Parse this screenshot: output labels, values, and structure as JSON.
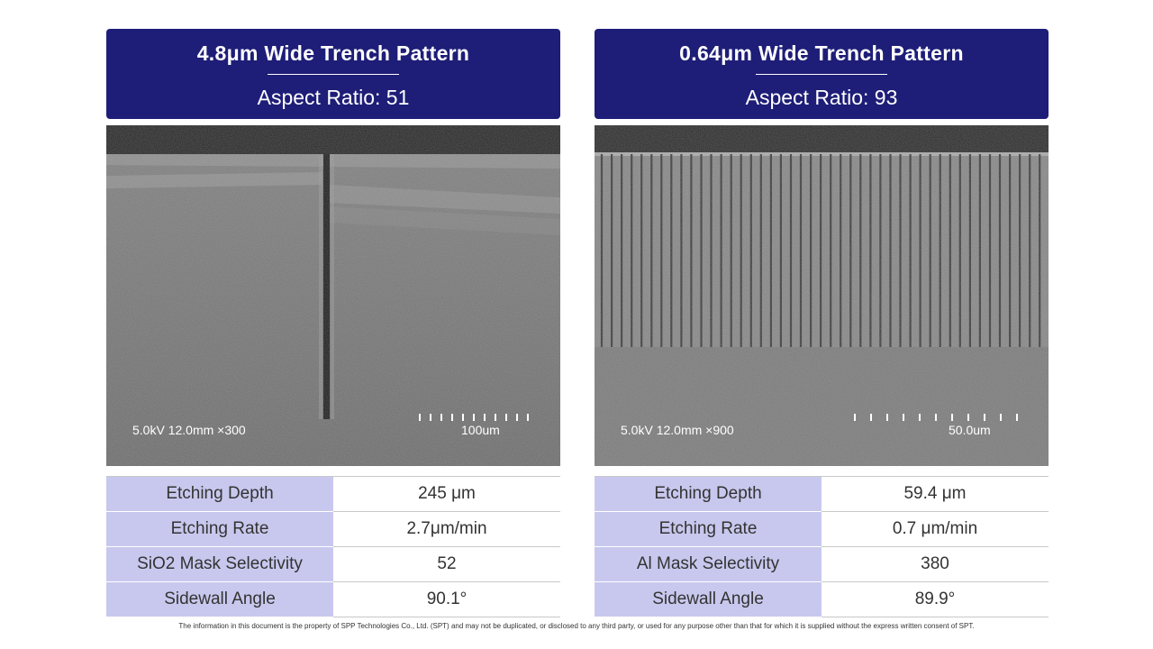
{
  "panels": [
    {
      "title": "4.8μm Wide Trench Pattern",
      "subtitle": "Aspect Ratio: 51",
      "sem": {
        "caption": "5.0kV 12.0mm ×300",
        "scale_label": "100um"
      },
      "specs": [
        {
          "param": "Etching Depth",
          "value": "245 μm"
        },
        {
          "param": "Etching Rate",
          "value": "2.7μm/min"
        },
        {
          "param": "SiO2 Mask Selectivity",
          "value": "52"
        },
        {
          "param": "Sidewall Angle",
          "value": "90.1°"
        }
      ]
    },
    {
      "title": "0.64μm Wide Trench Pattern",
      "subtitle": "Aspect Ratio: 93",
      "sem": {
        "caption": "5.0kV 12.0mm ×900",
        "scale_label": "50.0um"
      },
      "specs": [
        {
          "param": "Etching Depth",
          "value": "59.4 μm"
        },
        {
          "param": "Etching Rate",
          "value": "0.7 μm/min"
        },
        {
          "param": "Al Mask Selectivity",
          "value": "380"
        },
        {
          "param": "Sidewall Angle",
          "value": "89.9°"
        }
      ]
    }
  ],
  "footer": "The information in this document is the property of SPP Technologies Co., Ltd. (SPT) and may not be duplicated, or disclosed to any third party, or used for any purpose other than that for which it is supplied without the express written consent of SPT.",
  "colors": {
    "header_bg": "#1e1e78",
    "param_bg": "#c8c8ee"
  }
}
